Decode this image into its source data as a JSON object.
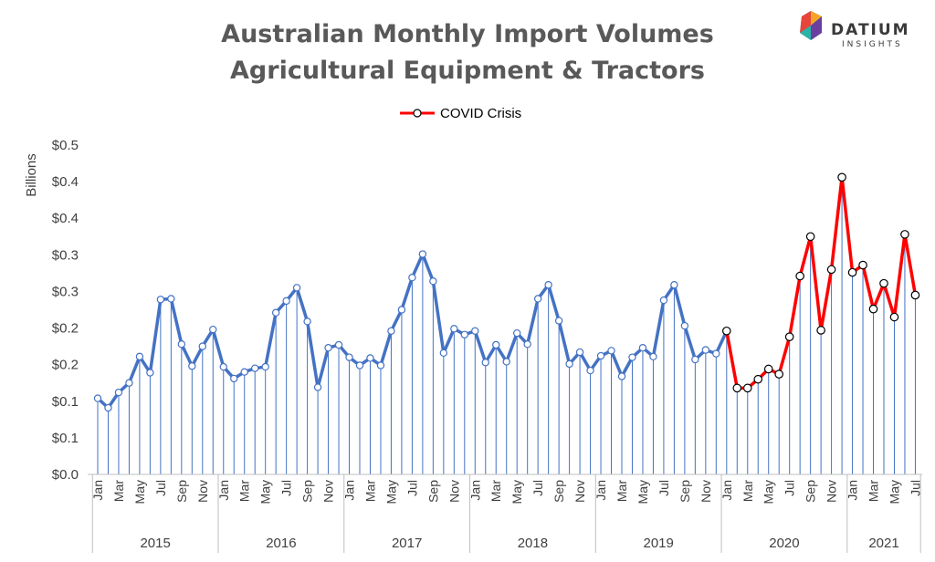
{
  "logo": {
    "name": "DATIUM",
    "sub": "INSIGHTS"
  },
  "chart_data": {
    "type": "line",
    "title": [
      "Australian Monthly Import Volumes",
      "Agricultural Equipment & Tractors"
    ],
    "ylabel": "Billions",
    "ylim": [
      0,
      0.45
    ],
    "y_ticks": [
      0,
      0.05,
      0.1,
      0.15,
      0.2,
      0.25,
      0.3,
      0.35,
      0.4,
      0.45
    ],
    "y_tick_labels": [
      "$0.0",
      "$0.1",
      "$0.1",
      "$0.2",
      "$0.2",
      "$0.3",
      "$0.3",
      "$0.4",
      "$0.4",
      "$0.5"
    ],
    "month_labels": [
      "Jan",
      "Mar",
      "May",
      "Jul",
      "Sep",
      "Nov"
    ],
    "years": [
      "2015",
      "2016",
      "2017",
      "2018",
      "2019",
      "2020",
      "2021"
    ],
    "legend": "COVID Crisis",
    "grid": false,
    "colors": {
      "pre": "#4472C4",
      "covid": "#FF0000",
      "drop_line": "#4472C4",
      "axis": "#BFBFBF",
      "title": "#595959"
    },
    "series": [
      {
        "name": "",
        "values": [
          0.104,
          0.091,
          0.112,
          0.125,
          0.161,
          0.139,
          0.239,
          0.24,
          0.178,
          0.148,
          0.175,
          0.198,
          0.147,
          0.131,
          0.14,
          0.145,
          0.147,
          0.221,
          0.237,
          0.255,
          0.209,
          0.119,
          0.173,
          0.177,
          0.16,
          0.149,
          0.159,
          0.149,
          0.196,
          0.225,
          0.269,
          0.301,
          0.264,
          0.166,
          0.199,
          0.191,
          0.196,
          0.153,
          0.177,
          0.154,
          0.193,
          0.178,
          0.24,
          0.259,
          0.21,
          0.151,
          0.167,
          0.142,
          0.162,
          0.169,
          0.134,
          0.16,
          0.173,
          0.161,
          0.238,
          0.259,
          0.203,
          0.157,
          0.17,
          0.165,
          0.196
        ]
      },
      {
        "name": "COVID Crisis",
        "values": [
          0.196,
          0.118,
          0.118,
          0.13,
          0.144,
          0.137,
          0.188,
          0.271,
          0.325,
          0.197,
          0.28,
          0.406,
          0.276,
          0.286,
          0.226,
          0.261,
          0.215,
          0.328,
          0.245
        ]
      }
    ]
  }
}
